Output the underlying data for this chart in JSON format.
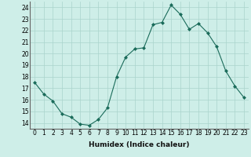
{
  "x": [
    0,
    1,
    2,
    3,
    4,
    5,
    6,
    7,
    8,
    9,
    10,
    11,
    12,
    13,
    14,
    15,
    16,
    17,
    18,
    19,
    20,
    21,
    22,
    23
  ],
  "y": [
    17.5,
    16.5,
    15.9,
    14.8,
    14.5,
    13.9,
    13.8,
    14.3,
    15.3,
    18.0,
    19.7,
    20.4,
    20.5,
    22.5,
    22.7,
    24.2,
    23.4,
    22.1,
    22.6,
    21.8,
    20.6,
    18.5,
    17.2,
    16.2
  ],
  "line_color": "#1a6b5a",
  "marker": "D",
  "marker_size": 2,
  "bg_color": "#ceeee8",
  "grid_color": "#aad4cc",
  "xlabel": "Humidex (Indice chaleur)",
  "xlim": [
    -0.5,
    23.5
  ],
  "ylim": [
    13.5,
    24.5
  ],
  "yticks": [
    14,
    15,
    16,
    17,
    18,
    19,
    20,
    21,
    22,
    23,
    24
  ],
  "xticks": [
    0,
    1,
    2,
    3,
    4,
    5,
    6,
    7,
    8,
    9,
    10,
    11,
    12,
    13,
    14,
    15,
    16,
    17,
    18,
    19,
    20,
    21,
    22,
    23
  ],
  "tick_fontsize": 5.5,
  "label_fontsize": 6.5
}
